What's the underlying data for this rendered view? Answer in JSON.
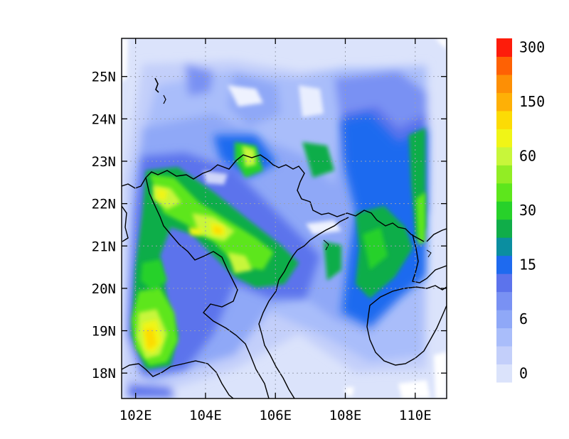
{
  "map": {
    "lon_range": [
      101.6,
      110.9
    ],
    "lat_range": [
      17.4,
      25.9
    ],
    "xticks": [
      {
        "value": 102,
        "label": "102E"
      },
      {
        "value": 104,
        "label": "104E"
      },
      {
        "value": 106,
        "label": "106E"
      },
      {
        "value": 108,
        "label": "108E"
      },
      {
        "value": 110,
        "label": "110E"
      }
    ],
    "yticks": [
      {
        "value": 18,
        "label": "18N"
      },
      {
        "value": 19,
        "label": "19N"
      },
      {
        "value": 20,
        "label": "20N"
      },
      {
        "value": 21,
        "label": "21N"
      },
      {
        "value": 22,
        "label": "22N"
      },
      {
        "value": 23,
        "label": "23N"
      },
      {
        "value": 24,
        "label": "24N"
      },
      {
        "value": 25,
        "label": "25N"
      }
    ],
    "gridlines": "dotted"
  },
  "colorbar": {
    "colors": [
      "#dbe3fb",
      "#c3cffa",
      "#a9bdfa",
      "#8fa8f7",
      "#7991f3",
      "#5c73ec",
      "#1e6aef",
      "#0b8ea0",
      "#10ad49",
      "#27d12a",
      "#5de61c",
      "#92ed24",
      "#c8f63a",
      "#f0f517",
      "#fcdb05",
      "#feb006",
      "#fd8f05",
      "#fe6104",
      "#fd1c0b"
    ],
    "labels": [
      {
        "index": 0,
        "text": "0"
      },
      {
        "index": 3,
        "text": "6"
      },
      {
        "index": 6,
        "text": "15"
      },
      {
        "index": 9,
        "text": "30"
      },
      {
        "index": 12,
        "text": "60"
      },
      {
        "index": 15,
        "text": "150"
      },
      {
        "index": 18,
        "text": "300"
      }
    ]
  }
}
